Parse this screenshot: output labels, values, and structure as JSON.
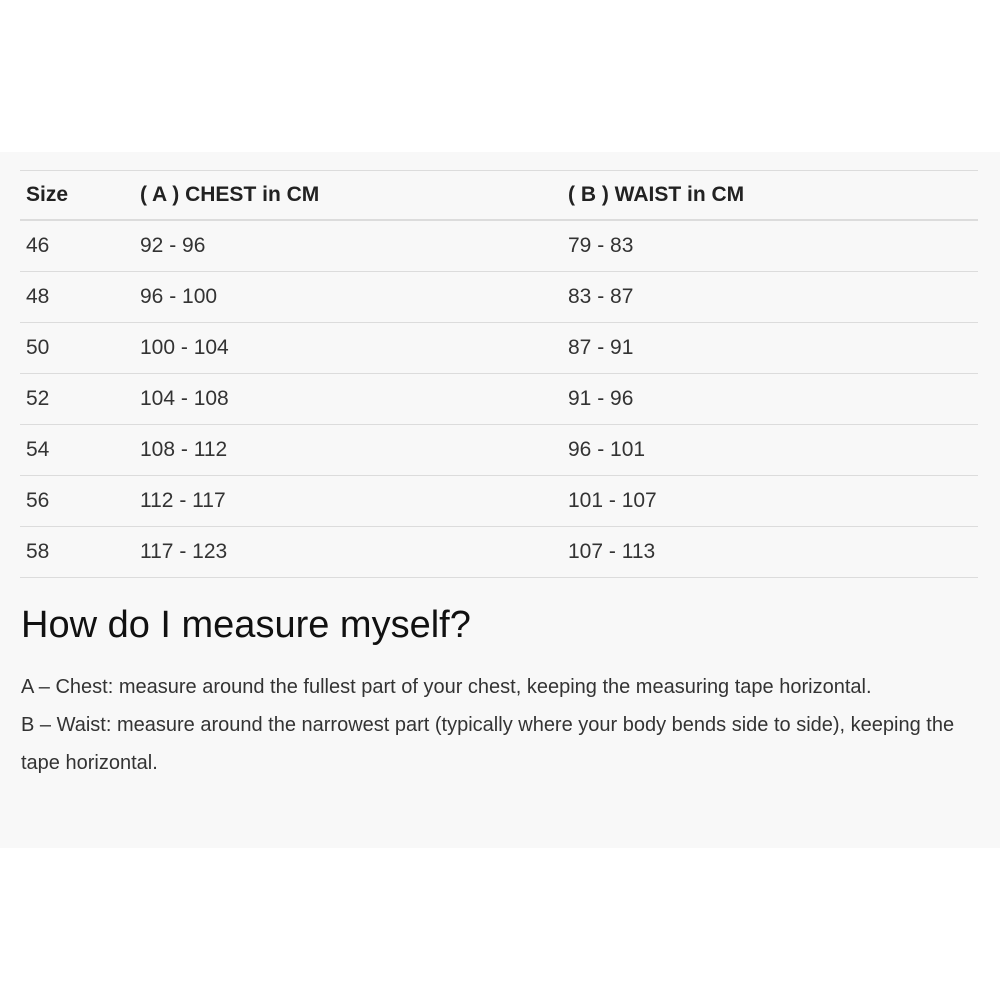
{
  "table": {
    "headers": [
      "Size",
      "( A ) CHEST in CM",
      "( B ) WAIST in CM"
    ],
    "rows": [
      [
        "46",
        "92 - 96",
        "79 - 83"
      ],
      [
        "48",
        "96 - 100",
        "83 - 87"
      ],
      [
        "50",
        "100 - 104",
        "87 - 91"
      ],
      [
        "52",
        "104 - 108",
        "91 - 96"
      ],
      [
        "54",
        "108 - 112",
        "96 - 101"
      ],
      [
        "56",
        "112 - 117",
        "101 - 107"
      ],
      [
        "58",
        "117 - 123",
        "107 - 113"
      ]
    ]
  },
  "heading": "How do I measure myself?",
  "instructions": [
    "A – Chest: measure around the fullest part of your chest, keeping the measuring tape horizontal.",
    "B – Waist: measure around the narrowest part (typically where your body bends side to side), keeping the tape horizontal."
  ]
}
